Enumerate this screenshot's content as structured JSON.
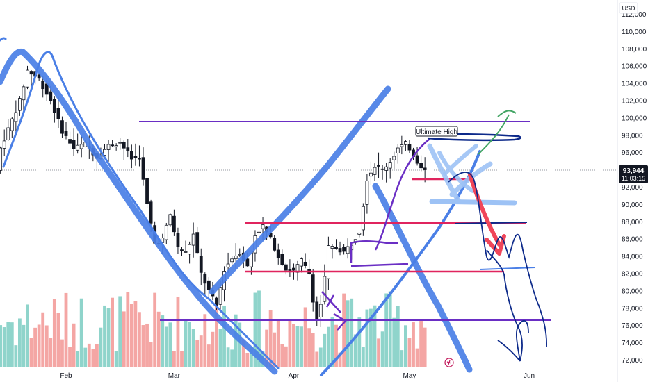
{
  "currency_label": "USD",
  "price_badge": {
    "price": "93,944",
    "countdown": "11:03:15",
    "color": "#131722"
  },
  "annotation": {
    "text": "Ultimate High"
  },
  "colors": {
    "up": "#26a69a",
    "down": "#ef5350",
    "up_vol": "#8fd4cb",
    "down_vol": "#f4a6a4",
    "blue": "#4a7fe6",
    "navy": "#0d2a8a",
    "purple": "#6a2ec4",
    "pink": "#e0245e",
    "red": "#f0465a",
    "green": "#43a564",
    "lightblue": "#9dc2f5"
  },
  "chart_data": {
    "type": "candlestick",
    "symbol_currency": "USD",
    "ylim": [
      71000,
      114000
    ],
    "y_ticks": [
      72000,
      74000,
      76000,
      78000,
      80000,
      82000,
      84000,
      86000,
      88000,
      90000,
      92000,
      94000,
      96000,
      98000,
      100000,
      102000,
      104000,
      106000,
      108000,
      110000,
      112000
    ],
    "y_tick_labels": [
      "72,000",
      "74,000",
      "76,000",
      "78,000",
      "80,000",
      "82,000",
      "84,000",
      "86,000",
      "88,000",
      "90,000",
      "92,000",
      "94,000",
      "96,000",
      "98,000",
      "100,000",
      "102,000",
      "104,000",
      "106,000",
      "108,000",
      "110,000",
      "112,000"
    ],
    "x_labels": [
      {
        "label": "Feb",
        "day": 17
      },
      {
        "label": "Mar",
        "day": 45
      },
      {
        "label": "Apr",
        "day": 76
      },
      {
        "label": "May",
        "day": 106
      },
      {
        "label": "Jun",
        "day": 137
      }
    ],
    "last_price": 93944,
    "horizontal_levels": [
      {
        "name": "resistance-top",
        "price": 99500,
        "color": "purple"
      },
      {
        "name": "pink-88k",
        "price": 87900,
        "color": "pink"
      },
      {
        "name": "pink-82k",
        "price": 82300,
        "color": "pink"
      },
      {
        "name": "pink-93k",
        "price": 92900,
        "color": "pink"
      },
      {
        "name": "support-76k",
        "price": 76700,
        "color": "purple"
      }
    ]
  }
}
